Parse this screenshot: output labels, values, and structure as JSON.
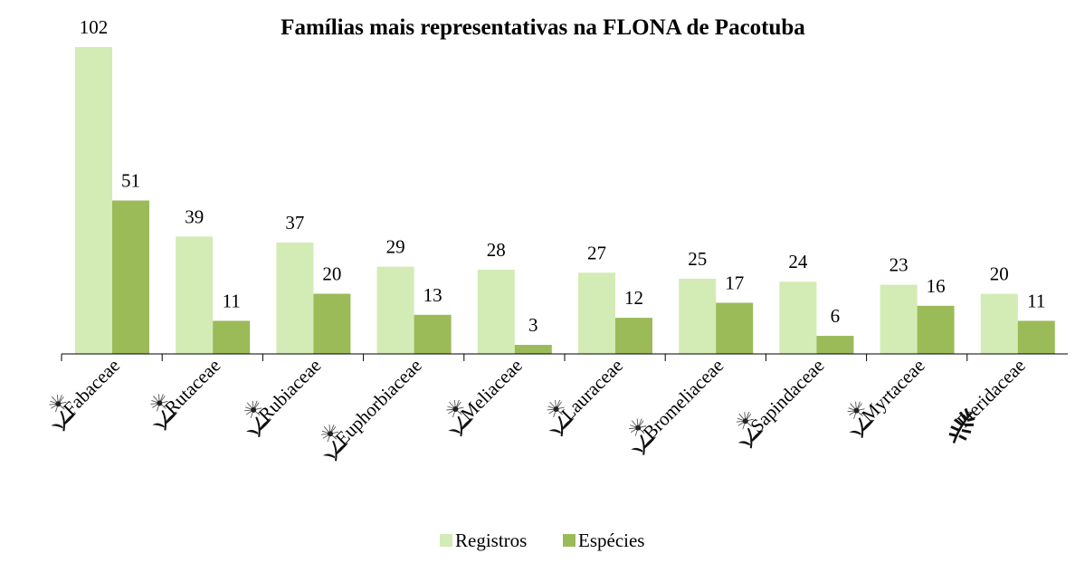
{
  "chart_data": {
    "type": "bar",
    "title": "Famílias mais representativas na FLONA de Pacotuba",
    "categories": [
      "Fabaceae",
      "Rutaceae",
      "Rubiaceae",
      "Euphorbiaceae",
      "Meliaceae",
      "Lauraceae",
      "Bromeliaceae",
      "Sapindaceae",
      "Myrtaceae",
      "Pteridaceae"
    ],
    "category_icons": [
      "flower-icon",
      "flower-icon",
      "flower-icon",
      "flower-icon",
      "flower-icon",
      "flower-icon",
      "flower-icon",
      "flower-icon",
      "flower-icon",
      "fern-icon"
    ],
    "series": [
      {
        "name": "Registros",
        "color": "#d3ebb5",
        "values": [
          102,
          39,
          37,
          29,
          28,
          27,
          25,
          24,
          23,
          20
        ]
      },
      {
        "name": "Espécies",
        "color": "#9bbb59",
        "values": [
          51,
          11,
          20,
          13,
          3,
          12,
          17,
          6,
          16,
          11
        ]
      }
    ],
    "xlabel": "",
    "ylabel": "",
    "ylim": [
      0,
      102
    ],
    "grid": false,
    "data_labels": true,
    "legend": "bottom"
  }
}
